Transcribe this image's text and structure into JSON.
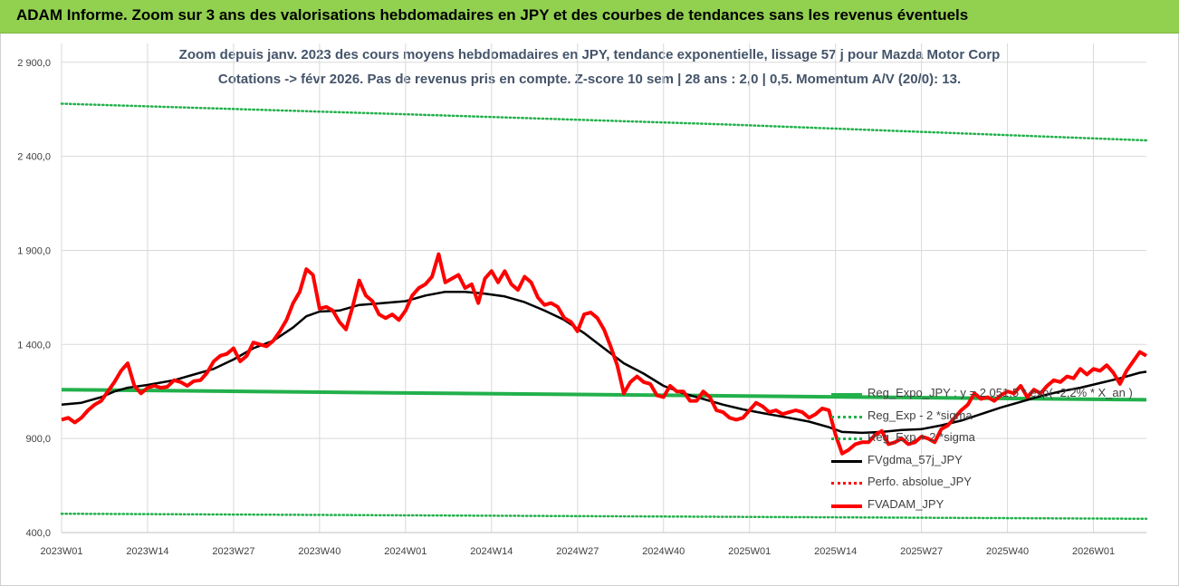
{
  "banner": {
    "title": "ADAM Informe. Zoom sur 3 ans des valorisations hebdomadaires en JPY et des courbes de tendances sans les revenus éventuels"
  },
  "colors": {
    "banner_bg": "#92d050",
    "title_text": "#44546a",
    "grid": "#d9d9d9",
    "regression": "#22b04b",
    "sigma_band": "#22b04b",
    "smoothed": "#000000",
    "price": "#ff0000",
    "perfo": "#ff0000"
  },
  "chart_data": {
    "type": "line",
    "title": "Zoom depuis janv. 2023 des cours moyens hebdomadaires en JPY, tendance exponentielle, lissage 57 j pour Mazda Motor Corp",
    "subtitle": "Cotations -> févr 2026. Pas de revenus pris en compte. Z-score 10 sem | 28 ans : 2,0 | 0,5. Momentum A/V (20/0): 13.",
    "xlabel": "",
    "ylabel": "",
    "ylim": [
      400,
      3000
    ],
    "y_ticks": [
      400,
      900,
      1400,
      1900,
      2400,
      2900
    ],
    "y_tick_labels": [
      "400,0",
      "900,0",
      "1 400,0",
      "1 900,0",
      "2 400,0",
      "2 900,0"
    ],
    "x_ticks": [
      "2023W01",
      "2023W14",
      "2023W27",
      "2023W40",
      "2024W01",
      "2024W14",
      "2024W27",
      "2024W40",
      "2025W01",
      "2025W14",
      "2025W27",
      "2025W40",
      "2026W01"
    ],
    "x_tick_index": [
      0,
      13,
      26,
      39,
      52,
      65,
      78,
      91,
      104,
      117,
      130,
      143,
      156
    ],
    "grid": true,
    "legend_position": "right",
    "series": [
      {
        "name": "Reg_Expo_JPY : y = 2 051,5 * exp( -2,2% * X_an )",
        "style": "solid-thick",
        "color": "#22b04b",
        "points": [
          [
            0,
            1160
          ],
          [
            50,
            1143
          ],
          [
            100,
            1127
          ],
          [
            164,
            1106
          ]
        ]
      },
      {
        "name": "Reg_Exp - 2 *sigma",
        "style": "dotted",
        "color": "#22b04b",
        "points": [
          [
            0,
            500
          ],
          [
            50,
            492
          ],
          [
            100,
            484
          ],
          [
            164,
            473
          ]
        ]
      },
      {
        "name": "Reg_Exp + 2 *sigma",
        "style": "dotted",
        "color": "#22b04b",
        "points": [
          [
            0,
            2680
          ],
          [
            50,
            2626
          ],
          [
            100,
            2570
          ],
          [
            164,
            2485
          ]
        ]
      },
      {
        "name": "FVgdma_57j_JPY",
        "style": "solid",
        "color": "#000000",
        "points": [
          [
            0,
            1080
          ],
          [
            3,
            1090
          ],
          [
            6,
            1120
          ],
          [
            8,
            1150
          ],
          [
            10,
            1170
          ],
          [
            13,
            1185
          ],
          [
            17,
            1210
          ],
          [
            20,
            1240
          ],
          [
            23,
            1270
          ],
          [
            26,
            1320
          ],
          [
            29,
            1380
          ],
          [
            32,
            1420
          ],
          [
            35,
            1490
          ],
          [
            37,
            1550
          ],
          [
            39,
            1575
          ],
          [
            42,
            1580
          ],
          [
            45,
            1610
          ],
          [
            48,
            1618
          ],
          [
            52,
            1630
          ],
          [
            55,
            1660
          ],
          [
            58,
            1680
          ],
          [
            61,
            1680
          ],
          [
            64,
            1670
          ],
          [
            67,
            1655
          ],
          [
            70,
            1625
          ],
          [
            73,
            1580
          ],
          [
            76,
            1530
          ],
          [
            79,
            1460
          ],
          [
            82,
            1380
          ],
          [
            85,
            1300
          ],
          [
            88,
            1245
          ],
          [
            91,
            1180
          ],
          [
            94,
            1140
          ],
          [
            97,
            1110
          ],
          [
            100,
            1080
          ],
          [
            103,
            1055
          ],
          [
            106,
            1035
          ],
          [
            110,
            1010
          ],
          [
            113,
            990
          ],
          [
            116,
            960
          ],
          [
            118,
            935
          ],
          [
            121,
            930
          ],
          [
            124,
            935
          ],
          [
            127,
            945
          ],
          [
            130,
            950
          ],
          [
            133,
            970
          ],
          [
            136,
            995
          ],
          [
            139,
            1030
          ],
          [
            142,
            1065
          ],
          [
            145,
            1095
          ],
          [
            148,
            1125
          ],
          [
            151,
            1150
          ],
          [
            154,
            1170
          ],
          [
            157,
            1195
          ],
          [
            160,
            1220
          ],
          [
            163,
            1250
          ],
          [
            164,
            1255
          ]
        ]
      },
      {
        "name": "Perfo. absolue_JPY",
        "style": "dotted",
        "color": "#ff0000",
        "points": []
      },
      {
        "name": "FVADAM_JPY",
        "style": "solid-thick",
        "color": "#ff0000",
        "points": [
          [
            0,
            1000
          ],
          [
            1,
            1010
          ],
          [
            2,
            985
          ],
          [
            3,
            1010
          ],
          [
            4,
            1050
          ],
          [
            5,
            1080
          ],
          [
            6,
            1100
          ],
          [
            7,
            1150
          ],
          [
            8,
            1200
          ],
          [
            9,
            1260
          ],
          [
            10,
            1300
          ],
          [
            11,
            1180
          ],
          [
            12,
            1140
          ],
          [
            13,
            1170
          ],
          [
            14,
            1180
          ],
          [
            15,
            1170
          ],
          [
            16,
            1175
          ],
          [
            17,
            1210
          ],
          [
            18,
            1200
          ],
          [
            19,
            1180
          ],
          [
            20,
            1205
          ],
          [
            21,
            1210
          ],
          [
            22,
            1250
          ],
          [
            23,
            1310
          ],
          [
            24,
            1340
          ],
          [
            25,
            1350
          ],
          [
            26,
            1380
          ],
          [
            27,
            1310
          ],
          [
            28,
            1340
          ],
          [
            29,
            1410
          ],
          [
            30,
            1400
          ],
          [
            31,
            1390
          ],
          [
            32,
            1420
          ],
          [
            33,
            1470
          ],
          [
            34,
            1530
          ],
          [
            35,
            1620
          ],
          [
            36,
            1680
          ],
          [
            37,
            1800
          ],
          [
            38,
            1770
          ],
          [
            39,
            1590
          ],
          [
            40,
            1600
          ],
          [
            41,
            1580
          ],
          [
            42,
            1520
          ],
          [
            43,
            1480
          ],
          [
            44,
            1600
          ],
          [
            45,
            1740
          ],
          [
            46,
            1660
          ],
          [
            47,
            1630
          ],
          [
            48,
            1560
          ],
          [
            49,
            1540
          ],
          [
            50,
            1560
          ],
          [
            51,
            1530
          ],
          [
            52,
            1580
          ],
          [
            53,
            1660
          ],
          [
            54,
            1700
          ],
          [
            55,
            1720
          ],
          [
            56,
            1760
          ],
          [
            57,
            1880
          ],
          [
            58,
            1730
          ],
          [
            59,
            1750
          ],
          [
            60,
            1770
          ],
          [
            61,
            1700
          ],
          [
            62,
            1720
          ],
          [
            63,
            1620
          ],
          [
            64,
            1750
          ],
          [
            65,
            1790
          ],
          [
            66,
            1730
          ],
          [
            67,
            1790
          ],
          [
            68,
            1720
          ],
          [
            69,
            1690
          ],
          [
            70,
            1760
          ],
          [
            71,
            1730
          ],
          [
            72,
            1650
          ],
          [
            73,
            1610
          ],
          [
            74,
            1620
          ],
          [
            75,
            1600
          ],
          [
            76,
            1540
          ],
          [
            77,
            1520
          ],
          [
            78,
            1470
          ],
          [
            79,
            1560
          ],
          [
            80,
            1570
          ],
          [
            81,
            1540
          ],
          [
            82,
            1480
          ],
          [
            83,
            1390
          ],
          [
            84,
            1290
          ],
          [
            85,
            1140
          ],
          [
            86,
            1200
          ],
          [
            87,
            1230
          ],
          [
            88,
            1200
          ],
          [
            89,
            1190
          ],
          [
            90,
            1130
          ],
          [
            91,
            1120
          ],
          [
            92,
            1180
          ],
          [
            93,
            1150
          ],
          [
            94,
            1150
          ],
          [
            95,
            1100
          ],
          [
            96,
            1100
          ],
          [
            97,
            1150
          ],
          [
            98,
            1120
          ],
          [
            99,
            1050
          ],
          [
            100,
            1040
          ],
          [
            101,
            1010
          ],
          [
            102,
            1000
          ],
          [
            103,
            1010
          ],
          [
            104,
            1050
          ],
          [
            105,
            1090
          ],
          [
            106,
            1070
          ],
          [
            107,
            1040
          ],
          [
            108,
            1050
          ],
          [
            109,
            1030
          ],
          [
            110,
            1040
          ],
          [
            111,
            1050
          ],
          [
            112,
            1040
          ],
          [
            113,
            1010
          ],
          [
            114,
            1030
          ],
          [
            115,
            1060
          ],
          [
            116,
            1050
          ],
          [
            117,
            920
          ],
          [
            118,
            820
          ],
          [
            119,
            840
          ],
          [
            120,
            870
          ],
          [
            121,
            880
          ],
          [
            122,
            880
          ],
          [
            123,
            920
          ],
          [
            124,
            940
          ],
          [
            125,
            870
          ],
          [
            126,
            880
          ],
          [
            127,
            900
          ],
          [
            128,
            870
          ],
          [
            129,
            880
          ],
          [
            130,
            910
          ],
          [
            131,
            900
          ],
          [
            132,
            880
          ],
          [
            133,
            950
          ],
          [
            134,
            970
          ],
          [
            135,
            1010
          ],
          [
            136,
            1050
          ],
          [
            137,
            1080
          ],
          [
            138,
            1140
          ],
          [
            139,
            1110
          ],
          [
            140,
            1120
          ],
          [
            141,
            1100
          ],
          [
            142,
            1130
          ],
          [
            143,
            1150
          ],
          [
            144,
            1140
          ],
          [
            145,
            1180
          ],
          [
            146,
            1120
          ],
          [
            147,
            1160
          ],
          [
            148,
            1140
          ],
          [
            149,
            1180
          ],
          [
            150,
            1210
          ],
          [
            151,
            1200
          ],
          [
            152,
            1230
          ],
          [
            153,
            1220
          ],
          [
            154,
            1270
          ],
          [
            155,
            1240
          ],
          [
            156,
            1270
          ],
          [
            157,
            1260
          ],
          [
            158,
            1290
          ],
          [
            159,
            1250
          ],
          [
            160,
            1190
          ],
          [
            161,
            1260
          ],
          [
            162,
            1310
          ],
          [
            163,
            1360
          ],
          [
            164,
            1340
          ]
        ]
      }
    ]
  }
}
